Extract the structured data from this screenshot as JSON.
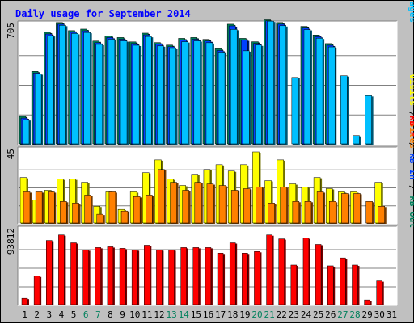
{
  "chart_data": {
    "type": "bar",
    "title": "Daily usage for September 2014",
    "colors": {
      "hits": "#00805c",
      "files": "#0040ff",
      "pages": "#00c0ff",
      "visits": "#ffff00",
      "sites": "#ff8000",
      "kbin": "#0040ff",
      "kbout": "#00805c",
      "kbf": "#ff0000",
      "title": "#0000ff",
      "weekday_label": "#000000",
      "weekend_label": "#00805c",
      "panel_bg": "#ffffff",
      "frame_bg": "#c0c0c0",
      "grid": "#808080"
    },
    "categories": [
      "1",
      "2",
      "3",
      "4",
      "5",
      "6",
      "7",
      "8",
      "9",
      "10",
      "11",
      "12",
      "13",
      "14",
      "15",
      "16",
      "17",
      "18",
      "19",
      "20",
      "21",
      "22",
      "23",
      "24",
      "25",
      "26",
      "27",
      "28",
      "29",
      "30",
      "31"
    ],
    "weekend_days": [
      "6",
      "7",
      "13",
      "14",
      "20",
      "21",
      "27",
      "28"
    ],
    "panels": [
      {
        "name": "hits-files-pages",
        "ymax": 705,
        "ymax_label": "705",
        "legend": [
          {
            "text": "Hits",
            "color_key": "hits"
          },
          {
            "text": "Files",
            "color_key": "files"
          },
          {
            "text": "Pages",
            "color_key": "pages"
          }
        ],
        "series": [
          {
            "name": "Hits",
            "color_key": "hits",
            "values": [
              168,
              435,
              667,
              725,
              677,
              686,
              615,
              646,
              636,
              610,
              662,
              606,
              591,
              631,
              636,
              625,
              569,
              715,
              631,
              611,
              741,
              725,
              0,
              702,
              651,
              600,
              0,
              0,
              0,
              0,
              0
            ]
          },
          {
            "name": "Files",
            "color_key": "files",
            "values": [
              158,
              425,
              657,
              715,
              667,
              676,
              605,
              636,
              626,
              600,
              652,
              596,
              581,
              621,
              626,
              615,
              559,
              705,
              621,
              601,
              735,
              715,
              0,
              692,
              641,
              590,
              0,
              0,
              0,
              0,
              0
            ]
          },
          {
            "name": "Pages",
            "color_key": "pages",
            "values": [
              148,
              420,
              647,
              708,
              660,
              666,
              595,
              626,
              616,
              590,
              642,
              586,
              571,
              611,
              616,
              605,
              549,
              684,
              557,
              591,
              733,
              706,
              399,
              683,
              632,
              580,
              409,
              54,
              291,
              0,
              0
            ]
          }
        ]
      },
      {
        "name": "visits-sites",
        "ymax": 45,
        "ymax_label": "45",
        "legend": [
          {
            "text": "Visits",
            "color_key": "visits"
          },
          {
            "text": "Sites",
            "color_key": "sites"
          }
        ],
        "series": [
          {
            "name": "Visits",
            "color_key": "visits",
            "values": [
              29,
              15,
              21,
              28,
              28,
              26,
              11,
              20,
              9,
              20,
              32,
              40,
              28,
              24,
              31,
              34,
              37,
              33,
              37,
              45,
              27,
              40,
              25,
              23,
              29,
              22,
              20,
              20,
              0,
              26,
              0
            ]
          },
          {
            "name": "Sites",
            "color_key": "sites",
            "values": [
              20,
              20,
              20,
              14,
              13,
              18,
              6,
              20,
              8,
              17,
              18,
              34,
              26,
              21,
              26,
              25,
              24,
              21,
              22,
              23,
              13,
              23,
              14,
              14,
              20,
              14,
              19,
              19,
              14,
              11,
              0
            ]
          }
        ]
      },
      {
        "name": "kbytes",
        "ymax": 93812,
        "ymax_label": "93812",
        "legend": [
          {
            "text": "kB F",
            "color_key": "kbf"
          },
          {
            "text": "kB In",
            "color_key": "kbin"
          },
          {
            "text": "kB Out",
            "color_key": "kbout"
          }
        ],
        "series": [
          {
            "name": "kB F",
            "color_key": "kbf",
            "values": [
              9000,
              37000,
              82000,
              89000,
              79000,
              70000,
              73000,
              74000,
              72000,
              70000,
              76000,
              70000,
              70000,
              73000,
              73000,
              73000,
              66000,
              79000,
              66000,
              68000,
              89000,
              84000,
              51000,
              85000,
              77000,
              50000,
              60000,
              51000,
              7000,
              31000,
              0
            ]
          }
        ]
      }
    ]
  }
}
